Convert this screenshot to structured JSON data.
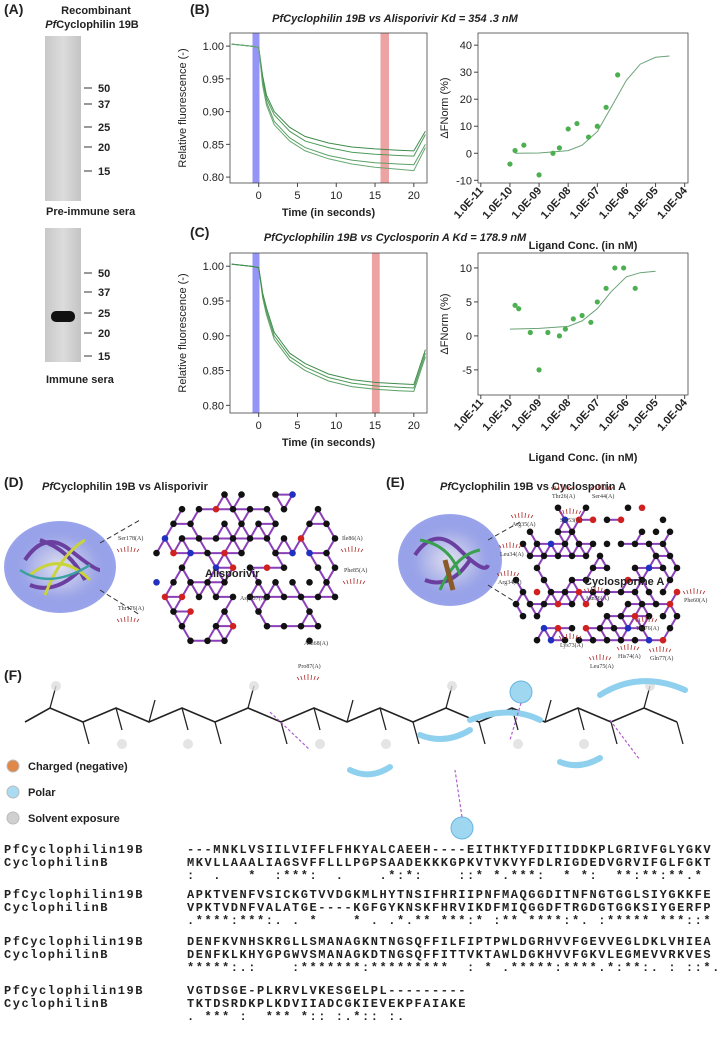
{
  "panel_a": {
    "label": "(A)",
    "heading": "Recombinant",
    "protein_prefix": "Pf",
    "protein": "Cyclophilin 19B",
    "blots": [
      {
        "markers": [
          50,
          37,
          25,
          20,
          15
        ],
        "caption": "Pre-immune sera"
      },
      {
        "markers": [
          50,
          37,
          25,
          20,
          15
        ],
        "caption": "Immune sera"
      }
    ]
  },
  "panel_b": {
    "label": "(B)",
    "title": "PfCyclophilin 19B vs Alisporivir Kd = 354 .3 nM",
    "charts": [
      {
        "type": "line",
        "y_label": "Relative fluorescence (-)",
        "x_label": "Time (in seconds)",
        "xlim": [
          -3.7,
          21.7
        ],
        "ylim": [
          0.791,
          1.02
        ],
        "xticks": [
          0,
          5,
          10,
          15,
          20
        ],
        "yticks": [
          {
            "value": 1,
            "label": "1.00"
          },
          0.95,
          {
            "value": 0.9,
            "label": "0.90"
          },
          0.85,
          {
            "value": 0.8,
            "label": "0.80"
          }
        ],
        "bands": [
          {
            "range": [
              -0.8,
              0.1
            ],
            "color": "#7b7bf5"
          },
          {
            "range": [
              15.7,
              16.8
            ],
            "color": "#e98c8c"
          }
        ],
        "x": [
          -3.5,
          -1,
          0,
          0.5,
          1,
          2,
          4,
          6,
          9,
          12,
          15,
          18,
          20,
          21.5
        ],
        "series": [
          {
            "color": "#4f9a5a",
            "values": [
              1.003,
              1.0,
              0.998,
              0.95,
              0.92,
              0.895,
              0.87,
              0.855,
              0.845,
              0.838,
              0.835,
              0.833,
              0.832,
              0.865
            ]
          },
          {
            "color": "#5aa065",
            "values": [
              1.003,
              1.0,
              0.998,
              0.945,
              0.915,
              0.885,
              0.86,
              0.845,
              0.833,
              0.826,
              0.822,
              0.82,
              0.819,
              0.85
            ]
          },
          {
            "color": "#3f8c4c",
            "values": [
              1.003,
              1.0,
              0.998,
              0.955,
              0.925,
              0.9,
              0.876,
              0.862,
              0.852,
              0.846,
              0.843,
              0.841,
              0.84,
              0.87
            ]
          },
          {
            "color": "#67a872",
            "values": [
              1.003,
              1.0,
              0.998,
              0.94,
              0.91,
              0.88,
              0.855,
              0.84,
              0.828,
              0.82,
              0.815,
              0.812,
              0.81,
              0.845
            ]
          }
        ]
      },
      {
        "type": "scatter",
        "y_label": "ΔFNorm (%)",
        "x_label": "Ligand Conc. (in nM)",
        "log_x": true,
        "xlim": [
          8e-12,
          0.00013
        ],
        "ylim": [
          -11,
          44.5
        ],
        "xticks": [
          {
            "value": 1e-11,
            "label": "1.0E-11"
          },
          {
            "value": 1e-10,
            "label": "1.0E-10"
          },
          {
            "value": 1e-09,
            "label": "1.0E-09"
          },
          {
            "value": 1e-08,
            "label": "1.0E-08"
          },
          {
            "value": 1e-07,
            "label": "1.0E-07"
          },
          {
            "value": 1e-06,
            "label": "1.0E-06"
          },
          {
            "value": 1e-05,
            "label": "1.0E-05"
          },
          {
            "value": 0.0001,
            "label": "1.0E-04"
          }
        ],
        "yticks": [
          -10,
          0,
          10,
          20,
          30,
          40
        ],
        "color": "#4caf50",
        "x": [
          1e-10,
          1.5e-10,
          3e-10,
          1e-09,
          3e-09,
          5e-09,
          1e-08,
          2e-08,
          5e-08,
          1e-07,
          2e-07,
          5e-07
        ],
        "values": [
          -4,
          1,
          3,
          -8,
          0,
          2,
          9,
          11,
          6,
          10,
          17,
          29
        ],
        "fit": {
          "color": "#6aa276",
          "x": [
            1.5e-10,
            1e-09,
            1e-08,
            3e-08,
            1e-07,
            3e-07,
            1e-06,
            3e-06,
            1e-05,
            3e-05
          ],
          "values": [
            0,
            0.1,
            1,
            3,
            8,
            17,
            27,
            33,
            35.5,
            36
          ]
        }
      }
    ]
  },
  "panel_c": {
    "label": "(C)",
    "title": "PfCyclophilin 19B vs Cyclosporin A Kd = 178.9 nM",
    "charts": [
      {
        "type": "line",
        "y_label": "Relative fluorescence (-)",
        "x_label": "Time (in seconds)",
        "xlim": [
          -3.7,
          21.7
        ],
        "ylim": [
          0.789,
          1.019
        ],
        "xticks": [
          0,
          5,
          10,
          15,
          20
        ],
        "yticks": [
          {
            "value": 1,
            "label": "1.00"
          },
          0.95,
          {
            "value": 0.9,
            "label": "0.90"
          },
          0.85,
          {
            "value": 0.8,
            "label": "0.80"
          }
        ],
        "bands": [
          {
            "range": [
              -0.8,
              0.1
            ],
            "color": "#7b7bf5"
          },
          {
            "range": [
              14.6,
              15.6
            ],
            "color": "#e98c8c"
          }
        ],
        "x": [
          -3.5,
          -1,
          0,
          0.5,
          1,
          2,
          4,
          6,
          9,
          12,
          15,
          18,
          20,
          21.5
        ],
        "series": [
          {
            "color": "#4f9a5a",
            "values": [
              1.003,
              1.0,
              0.998,
              0.96,
              0.935,
              0.9,
              0.87,
              0.855,
              0.84,
              0.832,
              0.828,
              0.826,
              0.825,
              0.875
            ]
          },
          {
            "color": "#5aa065",
            "values": [
              1.003,
              1.0,
              0.998,
              0.955,
              0.93,
              0.895,
              0.865,
              0.85,
              0.835,
              0.827,
              0.823,
              0.821,
              0.82,
              0.87
            ]
          },
          {
            "color": "#3f8c4c",
            "values": [
              1.003,
              1.0,
              0.998,
              0.962,
              0.94,
              0.905,
              0.875,
              0.86,
              0.845,
              0.837,
              0.833,
              0.831,
              0.83,
              0.88
            ]
          }
        ]
      },
      {
        "type": "scatter",
        "y_label": "ΔFNorm (%)",
        "x_label": "Ligand Conc. (in nM)",
        "log_x": true,
        "xlim": [
          8e-12,
          0.00013
        ],
        "ylim": [
          -8.7,
          12.2
        ],
        "xticks": [
          {
            "value": 1e-11,
            "label": "1.0E-11"
          },
          {
            "value": 1e-10,
            "label": "1.0E-10"
          },
          {
            "value": 1e-09,
            "label": "1.0E-09"
          },
          {
            "value": 1e-08,
            "label": "1.0E-08"
          },
          {
            "value": 1e-07,
            "label": "1.0E-07"
          },
          {
            "value": 1e-06,
            "label": "1.0E-06"
          },
          {
            "value": 1e-05,
            "label": "1.0E-05"
          },
          {
            "value": 0.0001,
            "label": "1.0E-04"
          }
        ],
        "yticks": [
          -5,
          0,
          5,
          10
        ],
        "color": "#4caf50",
        "x": [
          1.5e-10,
          2e-10,
          5e-10,
          1e-09,
          2e-09,
          5e-09,
          8e-09,
          1.5e-08,
          3e-08,
          6e-08,
          1e-07,
          2e-07,
          4e-07,
          8e-07,
          2e-06
        ],
        "values": [
          4.5,
          4,
          0.5,
          -5,
          0.5,
          0,
          1,
          2.5,
          3,
          2,
          5,
          7,
          10,
          10,
          7
        ],
        "fit": {
          "color": "#6aa276",
          "x": [
            1e-10,
            1e-09,
            1e-08,
            3e-08,
            1e-07,
            3e-07,
            1e-06,
            3e-06,
            1e-05
          ],
          "values": [
            1,
            1.1,
            1.4,
            2.2,
            4,
            6.5,
            8.7,
            9.3,
            9.5
          ]
        }
      }
    ]
  },
  "panel_d": {
    "label": "(D)",
    "title_prefix": "Pf",
    "title": "Cyclophilin 19B vs Alisporivir",
    "ligand": "Alisporivir",
    "residues": [
      "Ser178(A)",
      "Thr176(A)",
      "Ile86(A)",
      "Phe85(A)",
      "Pro87(A)",
      "Asp137(A)",
      "Asn68(A)"
    ]
  },
  "panel_e": {
    "label": "(E)",
    "title_prefix": "Pf",
    "title": "Cyclophilin 19B vs Cyclosporin A",
    "ligand": "Cyclosporine A",
    "residues": [
      "Thr26(A)",
      "Ser44(A)",
      "Arg35(A)",
      "Ser53(A)",
      "Leu34(A)",
      "Arg34(A)",
      "Phe60(A)",
      "Asn76(A)",
      "Lys73(A)",
      "Leu75(A)",
      "His74(A)",
      "Gln77(A)",
      "Thr76(A)"
    ]
  },
  "panel_f": {
    "label": "(F)",
    "legend": [
      {
        "label": "Charged (negative)",
        "color": "#e0874a"
      },
      {
        "label": "Polar",
        "color": "#a9dcf2"
      },
      {
        "label": "Solvent exposure",
        "color": "#d0d0d0"
      }
    ],
    "alignment": [
      {
        "rows": [
          {
            "name": "PfCyclophilin19B",
            "seq": "---MNKLVSIILVIFFLFHKYALCAEEH----EITHKTYFDITIDDKPLGRIVFGLYGKV"
          },
          {
            "name": "CyclophilinB",
            "seq": "MKVLLAAALIAGSVFFLLLPGPSAADEKKKGPKVTVKVYFDLRIGDEDVGRVIFGLFGKT"
          }
        ],
        "conservation": ":  .   *  :***:  .    .*:*:    ::* *.***:  * *:  **:**:**.*"
      },
      {
        "rows": [
          {
            "name": "PfCyclophilin19B",
            "seq": "APKTVENFVSICKGTVVDGKMLHYTNSIFHRIIPNFMAQGGDITNFNGTGGLSIYGKKFE"
          },
          {
            "name": "CyclophilinB",
            "seq": "VPKTVDNFVALATGE----KGFGYKNSKFHRVIKDFMIQGGDFTRGDGTGGKSIYGERFP"
          }
        ],
        "conservation": ".****:***:. . *    * . .*.** ***:* :** ****:*. :***** ***::*"
      },
      {
        "rows": [
          {
            "name": "PfCyclophilin19B",
            "seq": "DENFKVNHSKRGLLSMANAGKNTNGSQFFILFIPTPWLDGRHVVFGEVVEGLDKLVHIEA"
          },
          {
            "name": "CyclophilinB",
            "seq": "DENFKLKHYGPGWVSMANAGKDTNGSQFFITTVKTAWLDGKHVVFGKVLEGMEVVRKVES"
          }
        ],
        "conservation": "*****:.:    :*******:*********  : * .*****:****.*:**:. : ::*."
      },
      {
        "rows": [
          {
            "name": "PfCyclophilin19B",
            "seq": "VGTDSGE-PLKRVLVKESGELPL---------"
          },
          {
            "name": "CyclophilinB",
            "seq": "TKTDSRDKPLKDVIIADCGKIEVEKPFAIAKE"
          }
        ],
        "conservation": ". *** :  *** *:: :.*:: :."
      }
    ]
  }
}
